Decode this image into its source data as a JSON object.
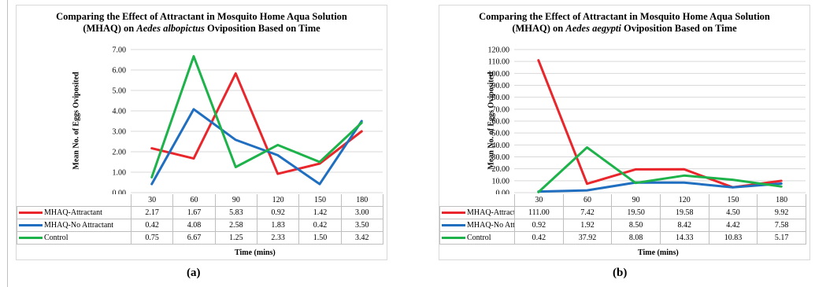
{
  "chart_data": [
    {
      "type": "line",
      "title": "Comparing the Effect of Attractant in Mosquito Home Aqua Solution (MHAQ) on Aedes albopictus Oviposition Based on Time",
      "title_line1": "Comparing the Effect of Attractant in Mosquito Home Aqua Solution",
      "title_line2_pre": "(MHAQ) on ",
      "title_line2_species": "Aedes albopictus",
      "title_line2_post": " Oviposition Based on Time",
      "xlabel": "Time (mins)",
      "ylabel": "Mean No. of Eggs Oviposited",
      "categories": [
        "30",
        "60",
        "90",
        "120",
        "150",
        "180"
      ],
      "ylim": [
        0,
        7
      ],
      "yticks": [
        "0.00",
        "1.00",
        "2.00",
        "3.00",
        "4.00",
        "5.00",
        "6.00",
        "7.00"
      ],
      "grid": true,
      "legend": "data-table",
      "series": [
        {
          "name": "MHAQ-Attractant",
          "color": "#e8262b",
          "values": [
            2.17,
            1.67,
            5.83,
            0.92,
            1.42,
            3.0
          ],
          "labels": [
            "2.17",
            "1.67",
            "5.83",
            "0.92",
            "1.42",
            "3.00"
          ]
        },
        {
          "name": "MHAQ-No Attractant",
          "color": "#1f6ebf",
          "values": [
            0.42,
            4.08,
            2.58,
            1.83,
            0.42,
            3.5
          ],
          "labels": [
            "0.42",
            "4.08",
            "2.58",
            "1.83",
            "0.42",
            "3.50"
          ]
        },
        {
          "name": "Control",
          "color": "#1db24a",
          "values": [
            0.75,
            6.67,
            1.25,
            2.33,
            1.5,
            3.42
          ],
          "labels": [
            "0.75",
            "6.67",
            "1.25",
            "2.33",
            "1.50",
            "3.42"
          ]
        }
      ],
      "panel_label": "(a)"
    },
    {
      "type": "line",
      "title": "Comparing the Effect of Attractant in Mosquito Home Aqua Solution (MHAQ) on Aedes aegypti Oviposition Based on Time",
      "title_line1": "Comparing the Effect of Attractant in Mosquito Home Aqua Solution",
      "title_line2_pre": "(MHAQ) on ",
      "title_line2_species": "Aedes aegypti",
      "title_line2_post": " Oviposition Based on Time",
      "xlabel": "Time (mins)",
      "ylabel": "Mean No. of Eggs Oviposited",
      "categories": [
        "30",
        "60",
        "90",
        "120",
        "150",
        "180"
      ],
      "ylim": [
        0,
        120
      ],
      "yticks": [
        "0.00",
        "10.00",
        "20.00",
        "30.00",
        "40.00",
        "50.00",
        "60.00",
        "70.00",
        "80.00",
        "90.00",
        "100.00",
        "110.00",
        "120.00"
      ],
      "grid": true,
      "legend": "data-table",
      "series": [
        {
          "name": "MHAQ-Attractant",
          "color": "#e8262b",
          "values": [
            111.0,
            7.42,
            19.5,
            19.58,
            4.5,
            9.92
          ],
          "labels": [
            "111.00",
            "7.42",
            "19.50",
            "19.58",
            "4.50",
            "9.92"
          ]
        },
        {
          "name": "MHAQ-No Attractant",
          "color": "#1f6ebf",
          "values": [
            0.92,
            1.92,
            8.5,
            8.42,
            4.42,
            7.58
          ],
          "labels": [
            "0.92",
            "1.92",
            "8.50",
            "8.42",
            "4.42",
            "7.58"
          ]
        },
        {
          "name": "Control",
          "color": "#1db24a",
          "values": [
            0.42,
            37.92,
            8.08,
            14.33,
            10.83,
            5.17
          ],
          "labels": [
            "0.42",
            "37.92",
            "8.08",
            "14.33",
            "10.83",
            "5.17"
          ]
        }
      ],
      "panel_label": "(b)"
    }
  ]
}
